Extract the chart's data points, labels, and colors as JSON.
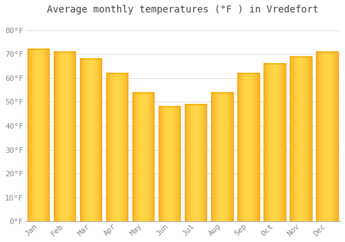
{
  "title": "Average monthly temperatures (°F ) in Vredefort",
  "months": [
    "Jan",
    "Feb",
    "Mar",
    "Apr",
    "May",
    "Jun",
    "Jul",
    "Aug",
    "Sep",
    "Oct",
    "Nov",
    "Dec"
  ],
  "values": [
    72,
    71,
    68,
    62,
    54,
    48,
    49,
    54,
    62,
    66,
    69,
    71
  ],
  "bar_color_center": "#FFD04A",
  "bar_color_edge": "#F5A200",
  "background_color": "#FFFFFF",
  "plot_bg_color": "#FFFFFF",
  "grid_color": "#E0E0E0",
  "ytick_labels": [
    "0°F",
    "10°F",
    "20°F",
    "30°F",
    "40°F",
    "50°F",
    "60°F",
    "70°F",
    "80°F"
  ],
  "ytick_values": [
    0,
    10,
    20,
    30,
    40,
    50,
    60,
    70,
    80
  ],
  "ylim": [
    0,
    85
  ],
  "title_fontsize": 10,
  "tick_fontsize": 8,
  "tick_color": "#888888",
  "title_color": "#444444",
  "font_family": "monospace",
  "bar_width": 0.82
}
